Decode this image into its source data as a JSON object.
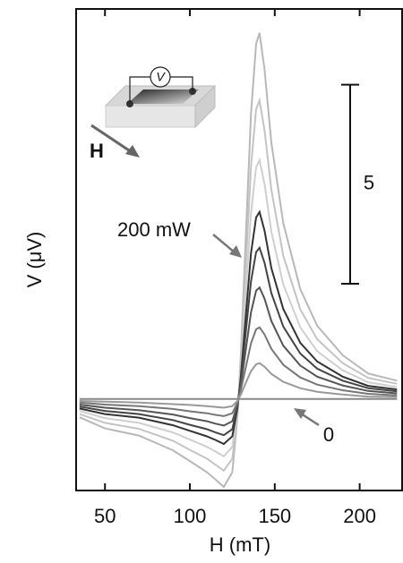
{
  "chart_data": {
    "type": "line",
    "xlabel": "H (mT)",
    "ylabel": "V (μV)",
    "x": [
      35,
      50,
      70,
      90,
      100,
      110,
      115,
      120,
      125,
      128,
      130,
      133,
      136,
      139,
      141,
      144,
      148,
      155,
      165,
      175,
      190,
      205,
      222
    ],
    "xlim": [
      33,
      225
    ],
    "xticks": [
      50,
      100,
      150,
      200
    ],
    "ylim": [
      -2.3,
      9.8
    ],
    "series": [
      {
        "color": "#b8b8b8",
        "values": [
          -0.46,
          -0.74,
          -0.92,
          -1.29,
          -1.56,
          -1.84,
          -2.02,
          -2.21,
          -1.84,
          -0.46,
          1.1,
          4.14,
          7.18,
          8.92,
          9.2,
          8.28,
          6.44,
          4.42,
          2.76,
          1.84,
          1.1,
          0.64,
          0.46
        ]
      },
      {
        "color": "#c4c4c4",
        "values": [
          -0.38,
          -0.6,
          -0.75,
          -1.05,
          -1.28,
          -1.5,
          -1.65,
          -1.8,
          -1.5,
          -0.38,
          0.9,
          3.38,
          5.85,
          7.28,
          7.5,
          6.75,
          5.25,
          3.6,
          2.25,
          1.5,
          0.9,
          0.53,
          0.38
        ]
      },
      {
        "color": "#cfcfcf",
        "values": [
          -0.3,
          -0.48,
          -0.6,
          -0.84,
          -1.02,
          -1.2,
          -1.32,
          -1.44,
          -1.2,
          -0.3,
          0.72,
          2.7,
          4.68,
          5.82,
          6.0,
          5.4,
          4.2,
          2.88,
          1.8,
          1.2,
          0.72,
          0.42,
          0.3
        ]
      },
      {
        "color": "#333333",
        "values": [
          -0.24,
          -0.38,
          -0.47,
          -0.66,
          -0.8,
          -0.94,
          -1.03,
          -1.13,
          -0.94,
          -0.24,
          0.56,
          2.12,
          3.67,
          4.56,
          4.7,
          4.23,
          3.29,
          2.26,
          1.41,
          0.94,
          0.56,
          0.33,
          0.24
        ]
      },
      {
        "color": "#444444",
        "values": [
          -0.19,
          -0.3,
          -0.38,
          -0.53,
          -0.65,
          -0.76,
          -0.84,
          -0.91,
          -0.76,
          -0.19,
          0.46,
          1.71,
          2.96,
          3.69,
          3.8,
          3.42,
          2.66,
          1.82,
          1.14,
          0.76,
          0.46,
          0.27,
          0.19
        ]
      },
      {
        "color": "#555555",
        "values": [
          -0.14,
          -0.22,
          -0.28,
          -0.39,
          -0.48,
          -0.56,
          -0.62,
          -0.67,
          -0.56,
          -0.14,
          0.34,
          1.26,
          2.18,
          2.72,
          2.8,
          2.52,
          1.96,
          1.34,
          0.84,
          0.56,
          0.34,
          0.2,
          0.14
        ]
      },
      {
        "color": "#777777",
        "values": [
          -0.09,
          -0.14,
          -0.18,
          -0.25,
          -0.31,
          -0.36,
          -0.4,
          -0.43,
          -0.36,
          -0.09,
          0.22,
          0.81,
          1.4,
          1.75,
          1.8,
          1.62,
          1.26,
          0.86,
          0.54,
          0.36,
          0.22,
          0.13,
          0.09
        ]
      },
      {
        "color": "#999999",
        "values": [
          -0.05,
          -0.07,
          -0.09,
          -0.13,
          -0.15,
          -0.18,
          -0.2,
          -0.22,
          -0.18,
          -0.05,
          0.11,
          0.41,
          0.7,
          0.87,
          0.9,
          0.81,
          0.63,
          0.43,
          0.27,
          0.18,
          0.11,
          0.06,
          0.05
        ]
      },
      {
        "color": "#888888",
        "values": [
          0,
          0,
          0,
          0,
          0,
          0,
          0,
          0,
          0,
          0,
          0,
          0,
          0,
          0,
          0,
          0,
          0,
          0,
          0,
          0,
          0,
          0,
          0
        ]
      }
    ],
    "annotations": [
      "200 mW",
      "0"
    ],
    "scale_bar": 5,
    "inset": {
      "voltmeter": "V",
      "field": "H"
    }
  }
}
